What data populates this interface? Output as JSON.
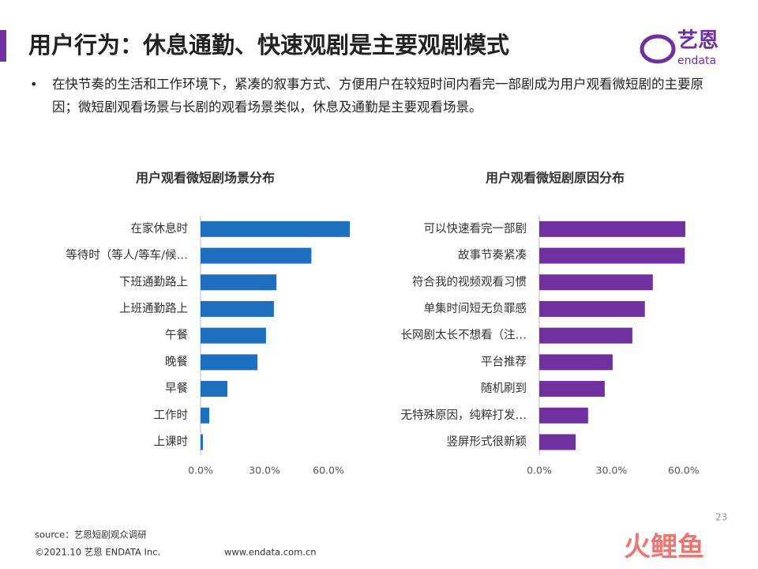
{
  "header": {
    "title": "用户行为：休息通勤、快速观剧是主要观剧模式",
    "logo": "艺恩",
    "logo_sub": "endata"
  },
  "bullet": "在快节奏的生活和工作环境下，紧凑的叙事方式、方便用户在较短时间内看完一部剧成为用户观看微短剧的主要原因；微短剧观看场景与长剧的观看场景类似，休息及通勤是主要观看场景。",
  "chart_data": [
    {
      "type": "bar",
      "orientation": "horizontal",
      "title": "用户观看微短剧场景分布",
      "categories": [
        "在家休息时",
        "等待时（等人/等车/候…",
        "下班通勤路上",
        "上班通勤路上",
        "午餐",
        "晚餐",
        "早餐",
        "工作时",
        "上课时"
      ],
      "values": [
        70.0,
        52.0,
        35.6,
        34.4,
        30.7,
        26.7,
        12.6,
        4.1,
        1.1
      ],
      "color": "#1f6fbf",
      "xlim": [
        0,
        75
      ],
      "xticks": [
        {
          "value": 0,
          "label": "0.0%"
        },
        {
          "value": 30,
          "label": "30.0%"
        },
        {
          "value": 60,
          "label": "60.0%"
        }
      ]
    },
    {
      "type": "bar",
      "orientation": "horizontal",
      "title": "用户观看微短剧原因分布",
      "categories": [
        "可以快速看完一部剧",
        "故事节奏紧凑",
        "符合我的视频观看习惯",
        "单集时间短无负罪感",
        "长网剧太长不想看（注…",
        "平台推荐",
        "随机刷到",
        "无特殊原因，纯粹打发…",
        "竖屏形式很新颖"
      ],
      "values": [
        60.7,
        60.5,
        47.2,
        43.9,
        38.7,
        30.5,
        27.2,
        20.3,
        15.1
      ],
      "color": "#7030a0",
      "xlim": [
        0,
        65
      ],
      "xticks": [
        {
          "value": 0,
          "label": "0.0%"
        },
        {
          "value": 30,
          "label": "30.0%"
        },
        {
          "value": 60,
          "label": "60.0%"
        }
      ]
    }
  ],
  "footer": {
    "source": "source：艺恩短剧观众调研",
    "copyright": "©2021.10 艺恩 ENDATA Inc.",
    "url": "www.endata.com.cn",
    "page": "23",
    "watermark": "火鲤鱼"
  }
}
